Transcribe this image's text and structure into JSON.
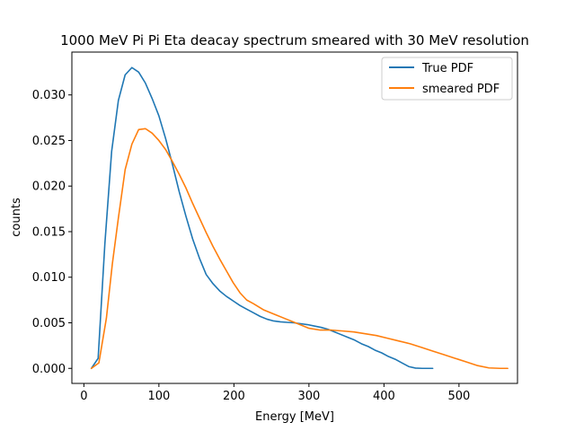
{
  "chart_data": {
    "type": "line",
    "title": "1000 MeV Pi Pi Eta deacay spectrum smeared with 30 MeV resolution",
    "xlabel": "Energy [MeV]",
    "ylabel": "counts",
    "xlim": [
      -16,
      578
    ],
    "ylim": [
      -0.00165,
      0.0347
    ],
    "xticks": [
      0,
      100,
      200,
      300,
      400,
      500
    ],
    "xtick_labels": [
      "0",
      "100",
      "200",
      "300",
      "400",
      "500"
    ],
    "yticks": [
      0.0,
      0.005,
      0.01,
      0.015,
      0.02,
      0.025,
      0.03
    ],
    "ytick_labels": [
      "0.000",
      "0.005",
      "0.010",
      "0.015",
      "0.020",
      "0.025",
      "0.030"
    ],
    "grid": false,
    "legend_position": "top-right",
    "series": [
      {
        "name": "True PDF",
        "color": "#1f77b4",
        "x": [
          10,
          19,
          28,
          37,
          46,
          55,
          64,
          73,
          82,
          91,
          100,
          109,
          118,
          127,
          136,
          145,
          154,
          163,
          172,
          181,
          190,
          199,
          208,
          217,
          226,
          235,
          244,
          253,
          262,
          271,
          280,
          289,
          298,
          307,
          316,
          325,
          334,
          343,
          352,
          361,
          370,
          379,
          388,
          397,
          406,
          415,
          424,
          433,
          442,
          451,
          460,
          465
        ],
        "y": [
          0.0,
          0.0011,
          0.0137,
          0.0238,
          0.0294,
          0.0322,
          0.033,
          0.0325,
          0.0313,
          0.0296,
          0.0277,
          0.0252,
          0.0224,
          0.0194,
          0.0167,
          0.0142,
          0.0121,
          0.0103,
          0.0093,
          0.0085,
          0.0079,
          0.0074,
          0.0069,
          0.0065,
          0.0061,
          0.0057,
          0.0054,
          0.0052,
          0.0051,
          0.00505,
          0.005,
          0.0049,
          0.0048,
          0.00465,
          0.0045,
          0.0043,
          0.004,
          0.0037,
          0.0034,
          0.0031,
          0.0027,
          0.0024,
          0.002,
          0.0017,
          0.0013,
          0.001,
          0.0006,
          0.0002,
          3e-05,
          0.0,
          0.0,
          0.0
        ]
      },
      {
        "name": "smeared PDF",
        "color": "#ff7f0e",
        "x": [
          10,
          20,
          30,
          38,
          46,
          55,
          64,
          73,
          82,
          91,
          100,
          109,
          118,
          127,
          136,
          145,
          154,
          163,
          172,
          181,
          190,
          199,
          208,
          217,
          226,
          240,
          255,
          270,
          285,
          300,
          315,
          330,
          345,
          360,
          375,
          390,
          405,
          420,
          435,
          450,
          465,
          480,
          495,
          510,
          525,
          540,
          555,
          565
        ],
        "y": [
          0.0,
          0.0006,
          0.0055,
          0.0115,
          0.0165,
          0.0218,
          0.0246,
          0.0262,
          0.0263,
          0.0258,
          0.025,
          0.024,
          0.0227,
          0.0213,
          0.0198,
          0.0181,
          0.0165,
          0.0149,
          0.0134,
          0.012,
          0.0107,
          0.0094,
          0.0083,
          0.0075,
          0.0071,
          0.0064,
          0.0059,
          0.0054,
          0.0049,
          0.0044,
          0.0042,
          0.0042,
          0.0041,
          0.004,
          0.0038,
          0.0036,
          0.0033,
          0.003,
          0.0027,
          0.0023,
          0.0019,
          0.0015,
          0.0011,
          0.0007,
          0.0003,
          5e-05,
          0.0,
          0.0
        ]
      }
    ]
  }
}
